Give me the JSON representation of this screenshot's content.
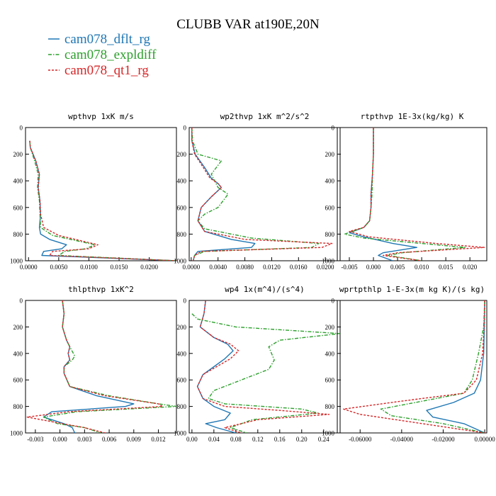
{
  "figure": {
    "title": "CLUBB VAR at190E,20N",
    "legend": [
      {
        "label": "cam078_dflt_rg",
        "color": "#1f77b4"
      },
      {
        "label": "cam078_expldiff",
        "color": "#2ca02c"
      },
      {
        "label": "cam078_qt1_rg",
        "color": "#d62728"
      }
    ]
  },
  "chart_data": [
    {
      "type": "line",
      "title": "wpthvp   1xK m/s",
      "xlim": [
        -0.0005,
        0.0245
      ],
      "ylim": [
        0,
        1000
      ],
      "xticks": [
        "0.0000",
        "0.0050",
        "0.0100",
        "0.0150",
        "0.0200"
      ],
      "yticks": [
        "0",
        "200",
        "400",
        "600",
        "800",
        "1000"
      ],
      "series": [
        {
          "name": "cam078_dflt_rg",
          "x": [
            0.0002,
            0.0003,
            0.0012,
            0.0018,
            0.0016,
            0.0019,
            0.002,
            0.0018,
            0.002,
            0.0035,
            0.0063,
            0.0055,
            0.0025,
            0.0022,
            0.0245
          ],
          "y": [
            100,
            150,
            250,
            350,
            450,
            550,
            650,
            750,
            800,
            840,
            880,
            910,
            930,
            960,
            1000
          ]
        },
        {
          "name": "cam078_expldiff",
          "x": [
            0.0002,
            0.0003,
            0.001,
            0.0016,
            0.0015,
            0.0018,
            0.0019,
            0.002,
            0.004,
            0.011,
            0.0095,
            0.006,
            0.005,
            0.0245
          ],
          "y": [
            100,
            150,
            250,
            350,
            450,
            550,
            650,
            750,
            810,
            880,
            910,
            930,
            960,
            1000
          ]
        },
        {
          "name": "cam078_qt1_rg",
          "x": [
            0.0002,
            0.0003,
            0.0012,
            0.0018,
            0.0016,
            0.0019,
            0.002,
            0.0025,
            0.005,
            0.0115,
            0.01,
            0.004,
            0.0035,
            0.0245
          ],
          "y": [
            100,
            150,
            250,
            350,
            450,
            550,
            650,
            750,
            810,
            880,
            910,
            930,
            960,
            1000
          ]
        }
      ]
    },
    {
      "type": "line",
      "title": "wp2thvp   1xK m^2/s^2",
      "xlim": [
        -0.0003,
        0.0222
      ],
      "ylim": [
        0,
        1000
      ],
      "xticks": [
        "0.0000",
        "0.0040",
        "0.0080",
        "0.0120",
        "0.0160",
        "0.0200"
      ],
      "yticks": [
        "0",
        "200",
        "400",
        "600",
        "800",
        "1000"
      ],
      "series": [
        {
          "name": "cam078_dflt_rg",
          "x": [
            0.0001,
            0.0001,
            0.0006,
            0.002,
            0.003,
            0.004,
            0.0045,
            0.003,
            0.0015,
            0.001,
            0.002,
            0.006,
            0.0095,
            0.009,
            0.001,
            0.0005,
            0.0003
          ],
          "y": [
            0,
            100,
            200,
            300,
            380,
            420,
            450,
            520,
            600,
            700,
            780,
            840,
            870,
            900,
            930,
            960,
            1000
          ]
        },
        {
          "name": "cam078_expldiff",
          "x": [
            0.0001,
            0.0002,
            0.001,
            0.0045,
            0.003,
            0.004,
            0.0055,
            0.004,
            0.002,
            0.001,
            0.002,
            0.009,
            0.019,
            0.018,
            0.002,
            0.0005,
            0.0003
          ],
          "y": [
            0,
            100,
            200,
            250,
            350,
            450,
            500,
            600,
            650,
            700,
            760,
            830,
            870,
            900,
            930,
            960,
            1000
          ]
        },
        {
          "name": "cam078_qt1_rg",
          "x": [
            0.0001,
            0.0001,
            0.0005,
            0.0018,
            0.0028,
            0.004,
            0.0045,
            0.003,
            0.0015,
            0.001,
            0.002,
            0.008,
            0.021,
            0.0195,
            0.0015,
            0.0005,
            0.0003
          ],
          "y": [
            0,
            100,
            200,
            300,
            380,
            420,
            450,
            520,
            600,
            700,
            780,
            840,
            870,
            900,
            930,
            960,
            1000
          ]
        }
      ]
    },
    {
      "type": "line",
      "title": "rtpthvp   1E-3x(kg/kg) K",
      "xlim": [
        -0.0075,
        0.0235
      ],
      "ylim": [
        0,
        1000
      ],
      "xticks": [
        "-0.005",
        "0.000",
        "0.005",
        "0.010",
        "0.015",
        "0.020"
      ],
      "yticks": [
        "0",
        "200",
        "400",
        "600",
        "800",
        "1000"
      ],
      "series": [
        {
          "name": "cam078_dflt_rg",
          "x": [
            0.0,
            0.0,
            -0.0002,
            -0.0005,
            -0.0005,
            -0.0008,
            -0.002,
            -0.005,
            -0.002,
            0.004,
            0.009,
            0.002,
            0.001,
            0.004
          ],
          "y": [
            0,
            200,
            350,
            500,
            600,
            700,
            750,
            790,
            820,
            870,
            900,
            940,
            960,
            1000
          ]
        },
        {
          "name": "cam078_expldiff",
          "x": [
            0.0,
            0.0,
            -0.0002,
            -0.0003,
            -0.0005,
            -0.0008,
            -0.002,
            -0.006,
            -0.002,
            0.01,
            0.019,
            0.006,
            0.003,
            0.01
          ],
          "y": [
            0,
            200,
            350,
            500,
            600,
            700,
            750,
            800,
            830,
            870,
            900,
            940,
            960,
            1000
          ]
        },
        {
          "name": "cam078_qt1_rg",
          "x": [
            0.0,
            0.0,
            -0.0002,
            -0.0005,
            -0.0005,
            -0.0008,
            -0.002,
            -0.005,
            -0.001,
            0.013,
            0.023,
            0.005,
            0.002,
            0.01
          ],
          "y": [
            0,
            200,
            350,
            500,
            600,
            700,
            750,
            780,
            820,
            870,
            900,
            940,
            960,
            1000
          ]
        }
      ]
    },
    {
      "type": "line",
      "title": "thlpthvp   1xK^2",
      "xlim": [
        -0.0042,
        0.0142
      ],
      "ylim": [
        0,
        1000
      ],
      "xticks": [
        "-0.003",
        "0.000",
        "0.003",
        "0.006",
        "0.009",
        "0.012"
      ],
      "yticks": [
        "0",
        "200",
        "400",
        "600",
        "800",
        "1000"
      ],
      "series": [
        {
          "name": "cam078_dflt_rg",
          "x": [
            0.0003,
            0.0005,
            0.0003,
            0.0008,
            0.0012,
            0.001,
            0.0012,
            0.0005,
            0.0005,
            0.0012,
            0.0045,
            0.009,
            0.008,
            -0.001,
            -0.002,
            0.0005,
            0.0015,
            0.0018
          ],
          "y": [
            0,
            100,
            200,
            300,
            350,
            400,
            450,
            500,
            550,
            650,
            720,
            780,
            800,
            840,
            880,
            930,
            960,
            1000
          ]
        },
        {
          "name": "cam078_expldiff",
          "x": [
            0.0003,
            0.0005,
            0.0003,
            0.0008,
            0.0012,
            0.0018,
            0.0015,
            0.0005,
            0.0005,
            0.0012,
            0.006,
            0.012,
            0.0142,
            0.002,
            -0.002,
            -0.0003,
            0.003,
            0.005
          ],
          "y": [
            0,
            100,
            200,
            300,
            350,
            420,
            450,
            500,
            550,
            650,
            720,
            780,
            800,
            840,
            880,
            930,
            960,
            1000
          ]
        },
        {
          "name": "cam078_qt1_rg",
          "x": [
            0.0003,
            0.0005,
            0.0003,
            0.0008,
            0.0012,
            0.001,
            0.0012,
            0.0005,
            0.0005,
            0.0012,
            0.0055,
            0.012,
            0.0125,
            0.001,
            -0.004,
            0.0003,
            0.003,
            0.0055
          ],
          "y": [
            0,
            100,
            200,
            300,
            350,
            400,
            450,
            500,
            550,
            650,
            720,
            780,
            800,
            840,
            880,
            930,
            960,
            1000
          ]
        }
      ]
    },
    {
      "type": "line",
      "title": "wp4   1x(m^4)/(s^4)",
      "xlim": [
        -0.005,
        0.27
      ],
      "ylim": [
        0,
        1000
      ],
      "xticks": [
        "0.00",
        "0.04",
        "0.08",
        "0.12",
        "0.16",
        "0.20",
        "0.24"
      ],
      "yticks": [
        "0",
        "200",
        "400",
        "600",
        "800",
        "1000"
      ],
      "series": [
        {
          "name": "cam078_dflt_rg",
          "x": [
            0.025,
            0.022,
            0.015,
            0.04,
            0.065,
            0.075,
            0.06,
            0.04,
            0.02,
            0.01,
            0.02,
            0.04,
            0.07,
            0.06,
            0.025,
            0.045,
            0.08
          ],
          "y": [
            0,
            100,
            200,
            280,
            330,
            380,
            440,
            500,
            560,
            650,
            740,
            800,
            850,
            900,
            930,
            960,
            1000
          ]
        },
        {
          "name": "cam078_expldiff",
          "x": [
            0.0,
            0.01,
            0.08,
            0.27,
            0.16,
            0.14,
            0.15,
            0.14,
            0.09,
            0.04,
            0.03,
            0.06,
            0.2,
            0.23,
            0.11,
            0.07,
            0.1
          ],
          "y": [
            100,
            140,
            200,
            250,
            300,
            350,
            450,
            520,
            600,
            680,
            740,
            780,
            820,
            850,
            900,
            960,
            1000
          ]
        },
        {
          "name": "cam078_qt1_rg",
          "x": [
            0.025,
            0.022,
            0.015,
            0.04,
            0.07,
            0.085,
            0.07,
            0.045,
            0.02,
            0.01,
            0.02,
            0.06,
            0.16,
            0.25,
            0.12,
            0.06,
            0.09
          ],
          "y": [
            0,
            100,
            200,
            280,
            330,
            380,
            440,
            500,
            560,
            650,
            740,
            800,
            830,
            860,
            900,
            960,
            1000
          ]
        }
      ]
    },
    {
      "type": "line",
      "title": "wprtpthlp   1-E-3x(m kg K)/(s kg)",
      "xlim": [
        -0.071,
        0.001
      ],
      "ylim": [
        0,
        1000
      ],
      "xticks": [
        "-0.06000",
        "-0.04000",
        "-0.02000",
        "0.00000"
      ],
      "yticks": [
        "0",
        "200",
        "400",
        "600",
        "800",
        "1000"
      ],
      "series": [
        {
          "name": "cam078_dflt_rg",
          "x": [
            0.0,
            -0.0002,
            -0.0005,
            -0.002,
            -0.005,
            -0.015,
            -0.028,
            -0.025,
            -0.01,
            0.0
          ],
          "y": [
            0,
            200,
            400,
            600,
            700,
            770,
            830,
            880,
            930,
            1000
          ]
        },
        {
          "name": "cam078_expldiff",
          "x": [
            0.0,
            -0.0005,
            -0.003,
            -0.006,
            -0.01,
            -0.03,
            -0.05,
            -0.045,
            -0.02,
            0.0
          ],
          "y": [
            0,
            200,
            400,
            600,
            700,
            760,
            820,
            870,
            930,
            1000
          ]
        },
        {
          "name": "cam078_qt1_rg",
          "x": [
            0.0,
            -0.0003,
            -0.001,
            -0.004,
            -0.01,
            -0.04,
            -0.068,
            -0.06,
            -0.03,
            0.0
          ],
          "y": [
            0,
            200,
            400,
            600,
            700,
            760,
            820,
            860,
            930,
            1000
          ]
        }
      ]
    }
  ]
}
